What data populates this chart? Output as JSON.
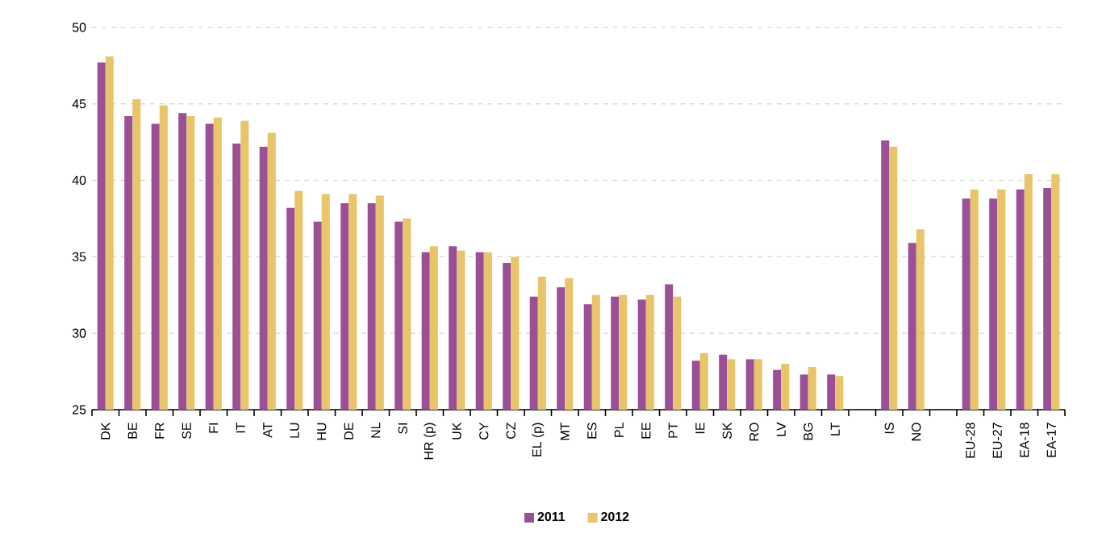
{
  "chart_data": {
    "type": "bar",
    "categories": [
      "DK",
      "BE",
      "FR",
      "SE",
      "FI",
      "IT",
      "AT",
      "LU",
      "HU",
      "DE",
      "NL",
      "SI",
      "HR (p)",
      "UK",
      "CY",
      "CZ",
      "EL (p)",
      "MT",
      "ES",
      "PL",
      "EE",
      "PT",
      "IE",
      "SK",
      "RO",
      "LV",
      "BG",
      "LT",
      null,
      "IS",
      "NO",
      null,
      "EU-28",
      "EU-27",
      "EA-18",
      "EA-17"
    ],
    "series": [
      {
        "name": "2011",
        "color": "#9b4f96",
        "values": [
          47.7,
          44.2,
          43.7,
          44.4,
          43.7,
          42.4,
          42.2,
          38.2,
          37.3,
          38.5,
          38.5,
          37.3,
          35.3,
          35.7,
          35.3,
          34.6,
          32.4,
          33.0,
          31.9,
          32.4,
          32.2,
          33.2,
          28.2,
          28.6,
          28.3,
          27.6,
          27.3,
          27.3,
          null,
          42.6,
          35.9,
          null,
          38.8,
          38.8,
          39.4,
          39.5
        ]
      },
      {
        "name": "2012",
        "color": "#e8c46a",
        "values": [
          48.1,
          45.3,
          44.9,
          44.2,
          44.1,
          43.9,
          43.1,
          39.3,
          39.1,
          39.1,
          39.0,
          37.5,
          35.7,
          35.4,
          35.3,
          35.0,
          33.7,
          33.6,
          32.5,
          32.5,
          32.5,
          32.4,
          28.7,
          28.3,
          28.3,
          28.0,
          27.8,
          27.2,
          null,
          42.2,
          36.8,
          null,
          39.4,
          39.4,
          40.4,
          40.4
        ]
      }
    ],
    "ylim": [
      25,
      50
    ],
    "yticks": [
      25,
      30,
      35,
      40,
      45,
      50
    ],
    "grid": "y",
    "legend": "bottom"
  }
}
